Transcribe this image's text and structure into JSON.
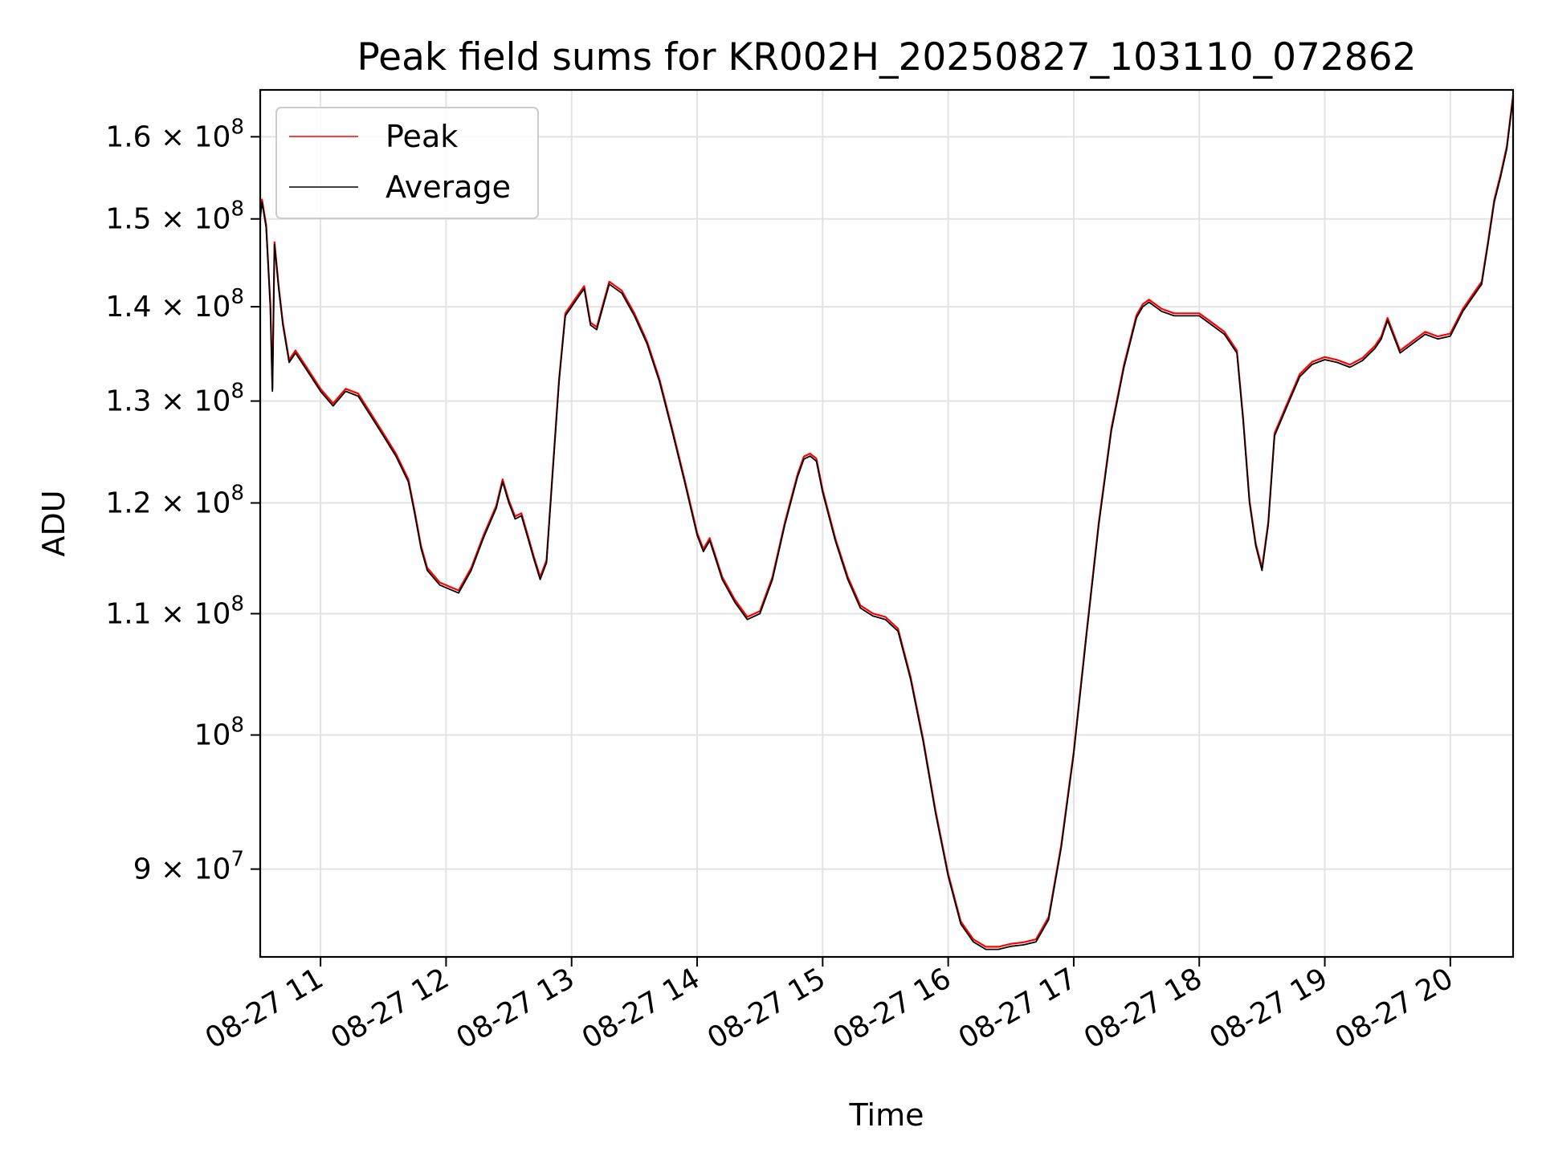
{
  "chart_data": {
    "type": "line",
    "title": "Peak field sums for KR002H_20250827_103110_072862",
    "xlabel": "Time",
    "ylabel": "ADU",
    "yscale": "log",
    "xlim": [
      "2025-08-27T10:31:10",
      "2025-08-27T20:30:00"
    ],
    "ylim": [
      84000000,
      166000000
    ],
    "grid": true,
    "legend_position": "top-left",
    "x_ticks": [
      {
        "value": "2025-08-27T11:00:00",
        "label": "08-27 11"
      },
      {
        "value": "2025-08-27T12:00:00",
        "label": "08-27 12"
      },
      {
        "value": "2025-08-27T13:00:00",
        "label": "08-27 13"
      },
      {
        "value": "2025-08-27T14:00:00",
        "label": "08-27 14"
      },
      {
        "value": "2025-08-27T15:00:00",
        "label": "08-27 15"
      },
      {
        "value": "2025-08-27T16:00:00",
        "label": "08-27 16"
      },
      {
        "value": "2025-08-27T17:00:00",
        "label": "08-27 17"
      },
      {
        "value": "2025-08-27T18:00:00",
        "label": "08-27 18"
      },
      {
        "value": "2025-08-27T19:00:00",
        "label": "08-27 19"
      },
      {
        "value": "2025-08-27T20:00:00",
        "label": "08-27 20"
      }
    ],
    "y_ticks": [
      {
        "value": 90000000,
        "mantissa": "9",
        "exponent": "7"
      },
      {
        "value": 100000000,
        "mantissa": "",
        "exponent": "8"
      },
      {
        "value": 110000000,
        "mantissa": "1.1",
        "exponent": "8"
      },
      {
        "value": 120000000,
        "mantissa": "1.2",
        "exponent": "8"
      },
      {
        "value": 130000000,
        "mantissa": "1.3",
        "exponent": "8"
      },
      {
        "value": 140000000,
        "mantissa": "1.4",
        "exponent": "8"
      },
      {
        "value": 150000000,
        "mantissa": "1.5",
        "exponent": "8"
      },
      {
        "value": 160000000,
        "mantissa": "1.6",
        "exponent": "8"
      }
    ],
    "series": [
      {
        "name": "Peak",
        "color": "#ff0000",
        "x": [],
        "values": []
      },
      {
        "name": "Average",
        "color": "#000000",
        "x": [
          "2025-08-27T10:31:10",
          "2025-08-27T10:32:00",
          "2025-08-27T10:34:00",
          "2025-08-27T10:36:00",
          "2025-08-27T10:37:00",
          "2025-08-27T10:38:00",
          "2025-08-27T10:40:00",
          "2025-08-27T10:42:00",
          "2025-08-27T10:45:00",
          "2025-08-27T10:48:00",
          "2025-08-27T10:51:00",
          "2025-08-27T10:54:00",
          "2025-08-27T10:57:00",
          "2025-08-27T11:00:00",
          "2025-08-27T11:06:00",
          "2025-08-27T11:12:00",
          "2025-08-27T11:18:00",
          "2025-08-27T11:24:00",
          "2025-08-27T11:30:00",
          "2025-08-27T11:36:00",
          "2025-08-27T11:42:00",
          "2025-08-27T11:45:00",
          "2025-08-27T11:48:00",
          "2025-08-27T11:51:00",
          "2025-08-27T11:57:00",
          "2025-08-27T12:06:00",
          "2025-08-27T12:12:00",
          "2025-08-27T12:18:00",
          "2025-08-27T12:24:00",
          "2025-08-27T12:27:00",
          "2025-08-27T12:30:00",
          "2025-08-27T12:33:00",
          "2025-08-27T12:36:00",
          "2025-08-27T12:39:00",
          "2025-08-27T12:42:00",
          "2025-08-27T12:45:00",
          "2025-08-27T12:48:00",
          "2025-08-27T12:51:00",
          "2025-08-27T12:54:00",
          "2025-08-27T12:57:00",
          "2025-08-27T13:03:00",
          "2025-08-27T13:06:00",
          "2025-08-27T13:09:00",
          "2025-08-27T13:12:00",
          "2025-08-27T13:15:00",
          "2025-08-27T13:18:00",
          "2025-08-27T13:24:00",
          "2025-08-27T13:30:00",
          "2025-08-27T13:36:00",
          "2025-08-27T13:42:00",
          "2025-08-27T13:48:00",
          "2025-08-27T13:54:00",
          "2025-08-27T14:00:00",
          "2025-08-27T14:03:00",
          "2025-08-27T14:06:00",
          "2025-08-27T14:12:00",
          "2025-08-27T14:18:00",
          "2025-08-27T14:24:00",
          "2025-08-27T14:30:00",
          "2025-08-27T14:36:00",
          "2025-08-27T14:42:00",
          "2025-08-27T14:48:00",
          "2025-08-27T14:51:00",
          "2025-08-27T14:54:00",
          "2025-08-27T14:57:00",
          "2025-08-27T15:00:00",
          "2025-08-27T15:06:00",
          "2025-08-27T15:12:00",
          "2025-08-27T15:18:00",
          "2025-08-27T15:24:00",
          "2025-08-27T15:30:00",
          "2025-08-27T15:36:00",
          "2025-08-27T15:42:00",
          "2025-08-27T15:48:00",
          "2025-08-27T15:54:00",
          "2025-08-27T16:00:00",
          "2025-08-27T16:06:00",
          "2025-08-27T16:12:00",
          "2025-08-27T16:18:00",
          "2025-08-27T16:24:00",
          "2025-08-27T16:30:00",
          "2025-08-27T16:36:00",
          "2025-08-27T16:42:00",
          "2025-08-27T16:48:00",
          "2025-08-27T16:54:00",
          "2025-08-27T17:00:00",
          "2025-08-27T17:06:00",
          "2025-08-27T17:12:00",
          "2025-08-27T17:18:00",
          "2025-08-27T17:24:00",
          "2025-08-27T17:30:00",
          "2025-08-27T17:33:00",
          "2025-08-27T17:36:00",
          "2025-08-27T17:42:00",
          "2025-08-27T17:48:00",
          "2025-08-27T17:54:00",
          "2025-08-27T18:00:00",
          "2025-08-27T18:06:00",
          "2025-08-27T18:12:00",
          "2025-08-27T18:18:00",
          "2025-08-27T18:21:00",
          "2025-08-27T18:24:00",
          "2025-08-27T18:27:00",
          "2025-08-27T18:30:00",
          "2025-08-27T18:33:00",
          "2025-08-27T18:36:00",
          "2025-08-27T18:42:00",
          "2025-08-27T18:48:00",
          "2025-08-27T18:54:00",
          "2025-08-27T19:00:00",
          "2025-08-27T19:06:00",
          "2025-08-27T19:12:00",
          "2025-08-27T19:18:00",
          "2025-08-27T19:24:00",
          "2025-08-27T19:27:00",
          "2025-08-27T19:30:00",
          "2025-08-27T19:36:00",
          "2025-08-27T19:42:00",
          "2025-08-27T19:48:00",
          "2025-08-27T19:54:00",
          "2025-08-27T20:00:00",
          "2025-08-27T20:06:00",
          "2025-08-27T20:12:00",
          "2025-08-27T20:15:00",
          "2025-08-27T20:18:00",
          "2025-08-27T20:21:00",
          "2025-08-27T20:24:00",
          "2025-08-27T20:27:00",
          "2025-08-27T20:30:00"
        ],
        "values": [
          150000000,
          152000000,
          149000000,
          140000000,
          131000000,
          147000000,
          142000000,
          138000000,
          134000000,
          135000000,
          134000000,
          133000000,
          132000000,
          131000000,
          129500000,
          131000000,
          130500000,
          128500000,
          126500000,
          124500000,
          122000000,
          119000000,
          115800000,
          113800000,
          112500000,
          111800000,
          113800000,
          116800000,
          119500000,
          122000000,
          120000000,
          118500000,
          118800000,
          116800000,
          114800000,
          113000000,
          114500000,
          123000000,
          132000000,
          139000000,
          141000000,
          142000000,
          138000000,
          137500000,
          140000000,
          142500000,
          141500000,
          139000000,
          136000000,
          132000000,
          127000000,
          122000000,
          117000000,
          115500000,
          116500000,
          113000000,
          111000000,
          109500000,
          110000000,
          113000000,
          118000000,
          122500000,
          124200000,
          124500000,
          124000000,
          121000000,
          116500000,
          113000000,
          110500000,
          109800000,
          109500000,
          108500000,
          104500000,
          99500000,
          94000000,
          89500000,
          86200000,
          85000000,
          84500000,
          84500000,
          84700000,
          84800000,
          85000000,
          86500000,
          91500000,
          98500000,
          108000000,
          118000000,
          127000000,
          133500000,
          138800000,
          140000000,
          140500000,
          139500000,
          139000000,
          139000000,
          139000000,
          138000000,
          137000000,
          135000000,
          128000000,
          120000000,
          116000000,
          113800000,
          118000000,
          126500000,
          129500000,
          132500000,
          133800000,
          134300000,
          134000000,
          133500000,
          134200000,
          135500000,
          136500000,
          138500000,
          135000000,
          136000000,
          137000000,
          136500000,
          136800000,
          139500000,
          141500000,
          142500000,
          147000000,
          152000000,
          155000000,
          158500000,
          165000000
        ]
      }
    ]
  }
}
